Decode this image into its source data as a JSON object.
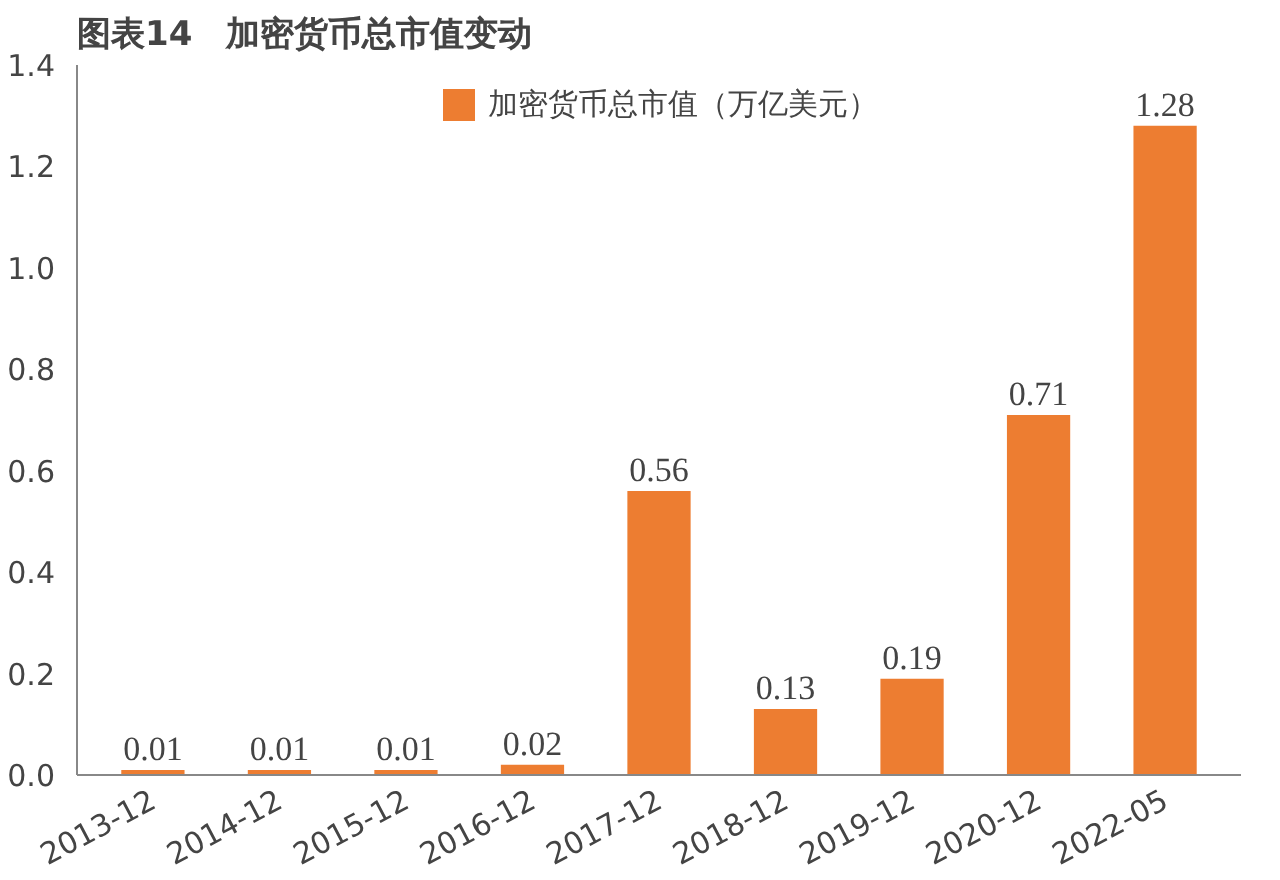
{
  "chart_data": {
    "type": "bar",
    "title": "图表14　加密货币总市值变动",
    "categories": [
      "2013-12",
      "2014-12",
      "2015-12",
      "2016-12",
      "2017-12",
      "2018-12",
      "2019-12",
      "2020-12",
      "2022-05"
    ],
    "series": [
      {
        "name": "加密货币总市值（万亿美元）",
        "color": "#ed7d31",
        "values": [
          0.01,
          0.01,
          0.01,
          0.02,
          0.56,
          0.13,
          0.19,
          0.71,
          1.28
        ]
      }
    ],
    "ylim": [
      0,
      1.4
    ],
    "yticks": [
      {
        "value": 0,
        "label": "0.0"
      },
      {
        "value": 0.2,
        "label": "0.2"
      },
      {
        "value": 0.4,
        "label": "0.4"
      },
      {
        "value": 0.6,
        "label": "0.6"
      },
      {
        "value": 0.8,
        "label": "0.8"
      },
      {
        "value": 1.0,
        "label": "1.0"
      },
      {
        "value": 1.2,
        "label": "1.2"
      },
      {
        "value": 1.4,
        "label": "1.4"
      }
    ],
    "data_labels": true,
    "grid": false,
    "legend": "top"
  }
}
